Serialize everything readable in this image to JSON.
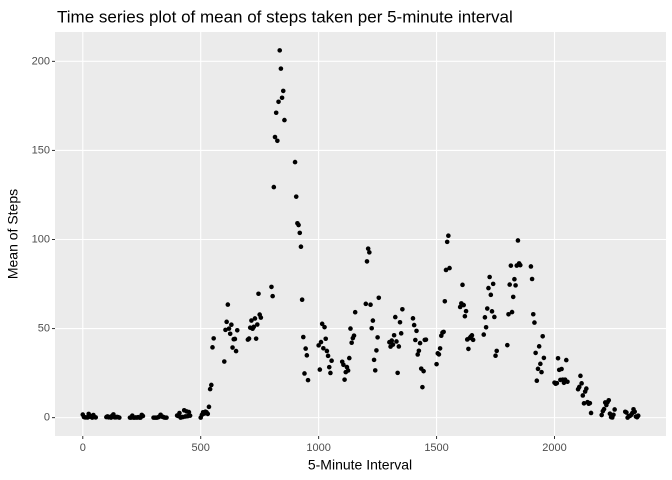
{
  "chart_data": {
    "type": "scatter",
    "title": "Time series plot of mean of steps taken per 5-minute interval",
    "x_label": "5-Minute Interval",
    "y_label": "Mean of Steps",
    "color": "#000000",
    "grid": true,
    "xlim": [
      -117.75,
      2472.75
    ],
    "ylim": [
      -10.31,
      216.48
    ],
    "xticks": [
      0,
      500,
      1000,
      1500,
      2000
    ],
    "yticks": [
      0,
      50,
      100,
      150,
      200
    ],
    "x": [
      0,
      5,
      10,
      15,
      20,
      25,
      30,
      35,
      40,
      45,
      50,
      55,
      100,
      105,
      110,
      115,
      120,
      125,
      130,
      135,
      140,
      145,
      150,
      155,
      200,
      205,
      210,
      215,
      220,
      225,
      230,
      235,
      240,
      245,
      250,
      255,
      300,
      305,
      310,
      315,
      320,
      325,
      330,
      335,
      340,
      345,
      350,
      355,
      400,
      405,
      410,
      415,
      420,
      425,
      430,
      435,
      440,
      445,
      450,
      455,
      500,
      505,
      510,
      515,
      520,
      525,
      530,
      535,
      540,
      545,
      550,
      555,
      600,
      605,
      610,
      615,
      620,
      625,
      630,
      635,
      640,
      645,
      650,
      655,
      700,
      705,
      710,
      715,
      720,
      725,
      730,
      735,
      740,
      745,
      750,
      755,
      800,
      805,
      810,
      815,
      820,
      825,
      830,
      835,
      840,
      845,
      850,
      855,
      900,
      905,
      910,
      915,
      920,
      925,
      930,
      935,
      940,
      945,
      950,
      955,
      1000,
      1005,
      1010,
      1015,
      1020,
      1025,
      1030,
      1035,
      1040,
      1045,
      1050,
      1055,
      1100,
      1105,
      1110,
      1115,
      1120,
      1125,
      1130,
      1135,
      1140,
      1145,
      1150,
      1155,
      1200,
      1205,
      1210,
      1215,
      1220,
      1225,
      1230,
      1235,
      1240,
      1245,
      1250,
      1255,
      1300,
      1305,
      1310,
      1315,
      1320,
      1325,
      1330,
      1335,
      1340,
      1345,
      1350,
      1355,
      1400,
      1405,
      1410,
      1415,
      1420,
      1425,
      1430,
      1435,
      1440,
      1445,
      1450,
      1455,
      1500,
      1505,
      1510,
      1515,
      1520,
      1525,
      1530,
      1535,
      1540,
      1545,
      1550,
      1555,
      1600,
      1605,
      1610,
      1615,
      1620,
      1625,
      1630,
      1635,
      1640,
      1645,
      1650,
      1655,
      1700,
      1705,
      1710,
      1715,
      1720,
      1725,
      1730,
      1735,
      1740,
      1745,
      1750,
      1755,
      1800,
      1805,
      1810,
      1815,
      1820,
      1825,
      1830,
      1835,
      1840,
      1845,
      1850,
      1855,
      1900,
      1905,
      1910,
      1915,
      1920,
      1925,
      1930,
      1935,
      1940,
      1945,
      1950,
      1955,
      2000,
      2005,
      2010,
      2015,
      2020,
      2025,
      2030,
      2035,
      2040,
      2045,
      2050,
      2055,
      2100,
      2105,
      2110,
      2115,
      2120,
      2125,
      2130,
      2135,
      2140,
      2145,
      2150,
      2155,
      2200,
      2205,
      2210,
      2215,
      2220,
      2225,
      2230,
      2235,
      2240,
      2245,
      2250,
      2255,
      2300,
      2305,
      2310,
      2315,
      2320,
      2325,
      2330,
      2335,
      2340,
      2345,
      2350,
      2355
    ],
    "values": [
      1.72,
      0.34,
      0.13,
      0.15,
      0.08,
      2.09,
      0.53,
      0.87,
      0,
      1.47,
      0.3,
      0.13,
      0.32,
      0.68,
      0.15,
      0.34,
      0,
      1.11,
      1.83,
      0.17,
      0.17,
      0.38,
      0.26,
      0,
      0,
      0,
      1.13,
      0,
      0,
      0.13,
      0,
      0.23,
      0,
      0,
      1.55,
      0.94,
      0,
      0,
      0,
      0,
      0.21,
      0.62,
      1.62,
      0.58,
      0.49,
      0.08,
      0,
      0,
      1.19,
      0.94,
      2.57,
      0,
      0.34,
      0.36,
      4.11,
      0.66,
      3.49,
      0.83,
      3.11,
      1.11,
      0,
      1.57,
      3,
      2.25,
      3.32,
      2.96,
      2.09,
      6.06,
      16.02,
      18.34,
      39.45,
      44.49,
      31.49,
      49.26,
      53.77,
      63.45,
      49.96,
      47.08,
      52.15,
      39.34,
      44.02,
      44.17,
      37.36,
      49.04,
      43.81,
      44.38,
      50.51,
      54.51,
      49.92,
      50.98,
      55.68,
      44.32,
      52.26,
      69.55,
      57.85,
      56.15,
      73.38,
      68.21,
      129.43,
      157.53,
      171.15,
      155.4,
      177.3,
      206.17,
      195.92,
      179.57,
      183.4,
      167.02,
      143.45,
      124.04,
      109.11,
      108.11,
      103.72,
      95.96,
      66.21,
      45.23,
      24.79,
      38.75,
      34.98,
      21.06,
      40.57,
      26.98,
      42.42,
      52.66,
      38.92,
      50.79,
      44.28,
      37.42,
      34.7,
      28.34,
      25.09,
      31.94,
      31.36,
      29.68,
      21.32,
      25.55,
      28.38,
      26.47,
      33.43,
      49.98,
      42.04,
      44.6,
      46.04,
      59.19,
      63.87,
      87.7,
      94.85,
      92.77,
      63.4,
      50.17,
      54.47,
      32.42,
      26.53,
      37.74,
      45.06,
      67.28,
      42.34,
      39.89,
      43.26,
      40.98,
      46.25,
      56.43,
      42.75,
      25.13,
      39.96,
      53.55,
      47.32,
      60.81,
      55.75,
      51.96,
      43.58,
      48.7,
      35.47,
      37.55,
      41.85,
      27.51,
      17.11,
      26.08,
      43.62,
      43.77,
      30.02,
      36.08,
      35.49,
      38.85,
      45.96,
      47.75,
      48.13,
      65.32,
      82.91,
      98.66,
      102.11,
      83.96,
      62.13,
      64.13,
      74.55,
      63.17,
      56.91,
      59.77,
      43.87,
      38.57,
      44.66,
      45.45,
      46.21,
      43.68,
      46.62,
      56.3,
      50.72,
      61.23,
      72.72,
      78.94,
      68.94,
      59.66,
      75.09,
      56.51,
      34.77,
      37.45,
      40.68,
      58.02,
      74.7,
      85.32,
      59.26,
      67.77,
      77.7,
      74.25,
      85.34,
      99.45,
      86.58,
      85.6,
      84.87,
      77.83,
      58.04,
      53.36,
      36.32,
      20.72,
      27.4,
      40.02,
      30.21,
      25.55,
      45.66,
      33.53,
      19.62,
      19.02,
      19.34,
      33.34,
      26.81,
      21.17,
      27.3,
      21.34,
      19.55,
      21.32,
      32.3,
      20.15,
      15.94,
      17.23,
      23.45,
      19.25,
      12.45,
      8.02,
      14.66,
      16.3,
      8.68,
      7.79,
      8.13,
      2.62,
      1.45,
      3.68,
      4.81,
      8.51,
      7.08,
      8.7,
      9.75,
      2.21,
      0.32,
      0.11,
      1.6,
      4.6,
      3.3,
      2.85,
      0,
      0.83,
      0.96,
      1.58,
      2.6,
      4.7,
      3.3,
      0.64,
      0.23,
      1.08
    ]
  }
}
